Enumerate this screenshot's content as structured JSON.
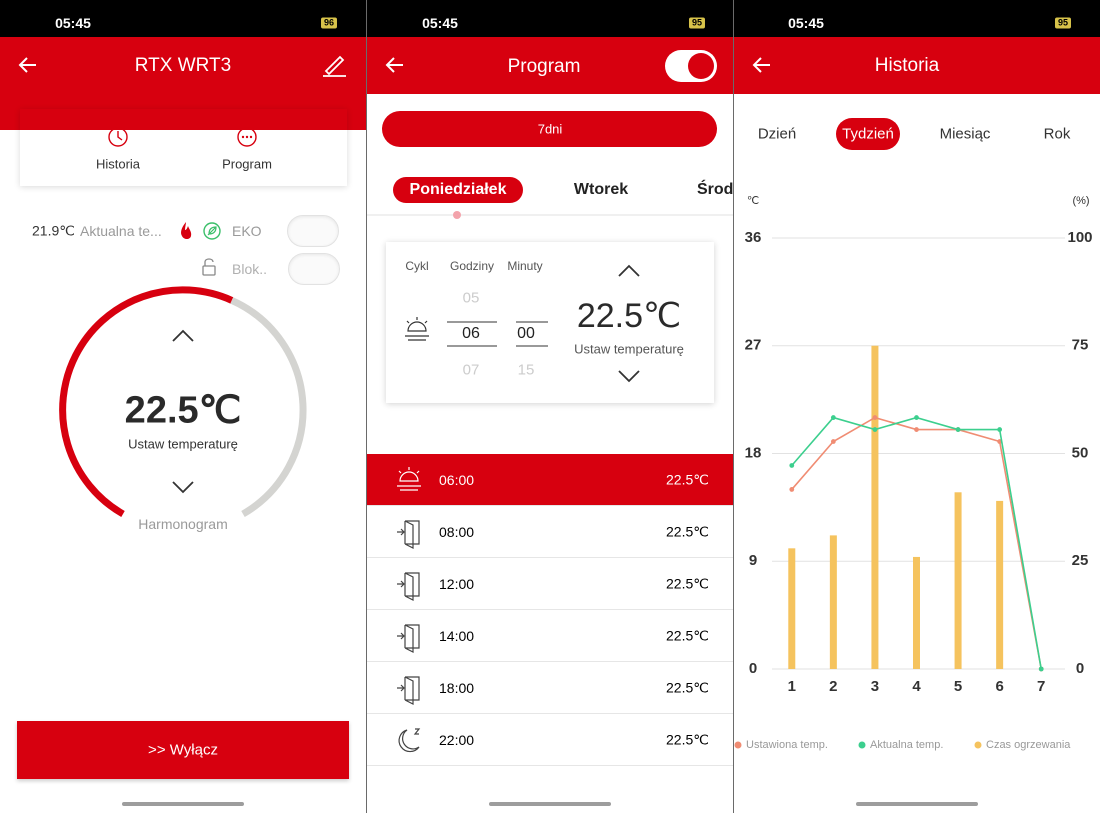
{
  "screens": [
    {
      "status": {
        "time": "05:45",
        "battery": "96"
      },
      "header": {
        "title": "RTX WRT3"
      },
      "tabs": [
        "Historia",
        "Program"
      ],
      "current": {
        "value": "21.9℃",
        "label": "Aktualna te..."
      },
      "eko": "EKO",
      "lock": "Blok..",
      "setpoint": {
        "value": "22.5℃",
        "label": "Ustaw temperaturę"
      },
      "dial_label": "Harmonogram",
      "button": ">> Wyłącz"
    },
    {
      "status": {
        "time": "05:45",
        "battery": "95"
      },
      "header": {
        "title": "Program"
      },
      "mode": "7dni",
      "days": [
        "Poniedziałek",
        "Wtorek",
        "Środa"
      ],
      "picker": {
        "headers": [
          "Cykl",
          "Godziny",
          "Minuty"
        ],
        "hours": [
          "05",
          "06",
          "07"
        ],
        "minutes": [
          "00",
          "15"
        ],
        "setpoint": "22.5℃",
        "setpoint_label": "Ustaw temperaturę"
      },
      "schedule": [
        {
          "time": "06:00",
          "temp": "22.5℃"
        },
        {
          "time": "08:00",
          "temp": "22.5℃"
        },
        {
          "time": "12:00",
          "temp": "22.5℃"
        },
        {
          "time": "14:00",
          "temp": "22.5℃"
        },
        {
          "time": "18:00",
          "temp": "22.5℃"
        },
        {
          "time": "22:00",
          "temp": "22.5℃"
        }
      ]
    },
    {
      "status": {
        "time": "05:45",
        "battery": "95"
      },
      "header": {
        "title": "Historia"
      },
      "periods": [
        "Dzień",
        "Tydzień",
        "Miesiąc",
        "Rok"
      ]
    }
  ],
  "chart_data": {
    "type": "combo",
    "y_label": "℃",
    "y2_label": "(%)",
    "categories": [
      "1",
      "2",
      "3",
      "4",
      "5",
      "6",
      "7"
    ],
    "ylim": [
      0,
      36
    ],
    "yticks": [
      0,
      9,
      18,
      27,
      36
    ],
    "y2lim": [
      0,
      100
    ],
    "y2ticks": [
      0,
      25,
      50,
      75,
      100
    ],
    "grid": true,
    "series": [
      {
        "name": "Ustawiona temp.",
        "type": "line",
        "color": "#f08c73",
        "values": [
          15,
          19,
          21,
          20,
          20,
          19,
          0
        ]
      },
      {
        "name": "Aktualna temp.",
        "type": "line",
        "color": "#3ccf8e",
        "values": [
          17,
          21,
          20,
          21,
          20,
          20,
          0
        ]
      },
      {
        "name": "Czas ogrzewania",
        "type": "bar",
        "axis": "y2",
        "color": "#f5c35e",
        "values": [
          28,
          31,
          75,
          26,
          41,
          39,
          0
        ]
      }
    ]
  }
}
